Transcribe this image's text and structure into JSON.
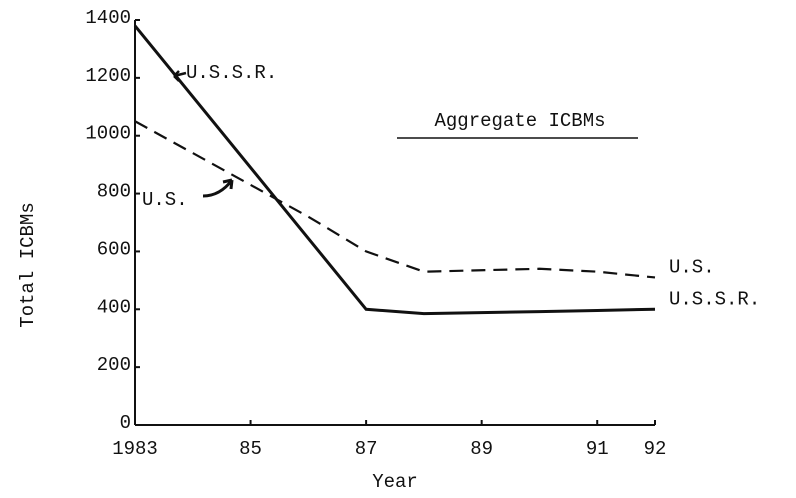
{
  "chart_data": {
    "type": "line",
    "title": "Aggregate ICBMs",
    "x_label": "Year",
    "y_label": "Total ICBMs",
    "x": [
      1983,
      1986,
      1987,
      1988,
      1990,
      1991,
      1992
    ],
    "series": [
      {
        "name": "U.S.S.R.",
        "color": "#111111",
        "dashed": false,
        "values": [
          1380,
          645,
          400,
          385,
          392,
          396,
          400
        ]
      },
      {
        "name": "U.S.",
        "color": "#111111",
        "dashed": true,
        "values": [
          1050,
          720,
          600,
          530,
          540,
          530,
          510
        ]
      }
    ],
    "annotations": [
      "U.S.S.R.",
      "U.S."
    ],
    "xlim": [
      1983,
      1992
    ],
    "xticks": [
      1983,
      {
        "value": 1985,
        "label": "85"
      },
      {
        "value": 1987,
        "label": "87"
      },
      {
        "value": 1989,
        "label": "89"
      },
      {
        "value": 1991,
        "label": "91"
      },
      {
        "value": 1992,
        "label": "92"
      }
    ],
    "ylim": [
      0,
      1400
    ],
    "yticks": [
      0,
      200,
      400,
      600,
      800,
      1000,
      1200,
      1400
    ],
    "grid": false
  }
}
